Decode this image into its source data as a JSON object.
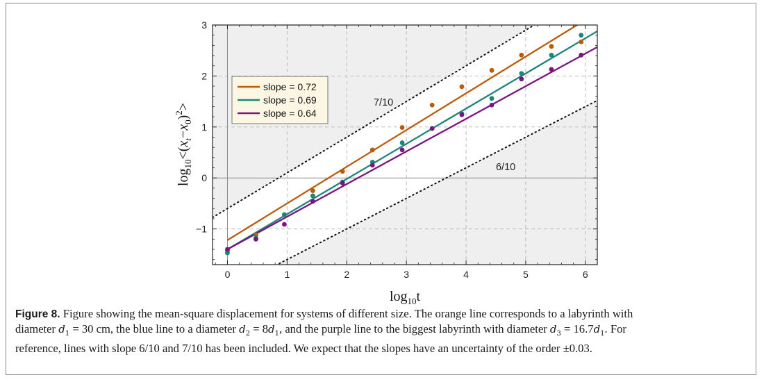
{
  "chart_data": {
    "type": "scatter",
    "xlabel": "log10t",
    "ylabel": "log10<(xt−x0)2>",
    "xlim": [
      -0.25,
      6.2
    ],
    "ylim": [
      -1.7,
      3.0
    ],
    "x_ticks": [
      0,
      1,
      2,
      3,
      4,
      5,
      6
    ],
    "y_ticks": [
      -1,
      0,
      1,
      2,
      3
    ],
    "grid": true,
    "legend_position": "top-left",
    "series": [
      {
        "name": "slope = 0.72",
        "color": "#b85c0c",
        "x": [
          0,
          0.477,
          0.954,
          1.431,
          1.929,
          2.431,
          2.929,
          3.431,
          3.929,
          4.431,
          4.929,
          5.431,
          5.929
        ],
        "y": [
          -1.43,
          -1.12,
          -0.72,
          -0.25,
          0.13,
          0.55,
          0.99,
          1.43,
          1.79,
          2.11,
          2.41,
          2.58,
          2.67
        ],
        "fit": {
          "slope": 0.72,
          "intercept": -1.22
        }
      },
      {
        "name": "slope = 0.69",
        "color": "#1e8478",
        "x": [
          0,
          0.477,
          0.954,
          1.431,
          1.929,
          2.431,
          2.929,
          3.431,
          3.929,
          4.431,
          4.929,
          5.431,
          5.929
        ],
        "y": [
          -1.47,
          -1.18,
          -0.72,
          -0.35,
          -0.08,
          0.31,
          0.69,
          0.97,
          1.26,
          1.56,
          2.05,
          2.41,
          2.8
        ],
        "fit": {
          "slope": 0.69,
          "intercept": -1.4
        }
      },
      {
        "name": "slope = 0.64",
        "color": "#7a147e",
        "x": [
          0,
          0.477,
          0.954,
          1.431,
          1.929,
          2.431,
          2.929,
          3.431,
          3.929,
          4.431,
          4.929,
          5.431,
          5.929
        ],
        "y": [
          -1.4,
          -1.2,
          -0.91,
          -0.46,
          -0.1,
          0.25,
          0.55,
          0.97,
          1.24,
          1.43,
          1.94,
          2.13,
          2.41
        ],
        "fit": {
          "slope": 0.64,
          "intercept": -1.4
        }
      }
    ],
    "reference_lines": [
      {
        "label": "7/10",
        "slope": 0.7,
        "intercept": -0.6,
        "label_at": [
          2.45,
          1.42
        ]
      },
      {
        "label": "6/10",
        "slope": 0.6,
        "intercept": -2.2,
        "label_at": [
          4.5,
          0.15
        ]
      }
    ]
  },
  "caption": {
    "figure_label": "Figure 8.",
    "p1": " Figure showing the mean-square displacement for systems of different size. The orange line corresponds to a labyrinth with",
    "p2a": "diameter ",
    "d1_eq": "d",
    "d1_rest": " = 30 cm",
    "p2b": ", the blue line to a diameter ",
    "d2_eq": "d",
    "d2_rest": " = 8",
    "p2c": ", and the purple line to the biggest labyrinth with diameter ",
    "d3_rest": " = 16.7",
    "p2d": ". For",
    "p3a": "reference, lines with slope 6/10 and 7/10 has been included. We expect that the slopes have an uncertainty of the order ",
    "uncert": "±0.03",
    "p3b": "."
  }
}
